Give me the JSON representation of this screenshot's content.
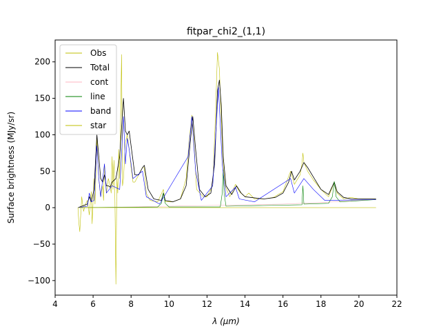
{
  "chart_data": {
    "type": "line",
    "title": "fitpar_chi2_(1,1)",
    "xlabel": "λ (μm)",
    "ylabel": "Surface brightness (MJy/sr)",
    "xlim": [
      4,
      22
    ],
    "ylim": [
      -120,
      230
    ],
    "xticks": [
      4,
      6,
      8,
      10,
      12,
      14,
      16,
      18,
      20,
      22
    ],
    "xtick_labels": [
      "4",
      "6",
      "8",
      "10",
      "12",
      "14",
      "16",
      "18",
      "20",
      "22"
    ],
    "yticks": [
      -100,
      -50,
      0,
      50,
      100,
      150,
      200
    ],
    "ytick_labels": [
      "−100",
      "−50",
      "0",
      "50",
      "100",
      "150",
      "200"
    ],
    "grid": false,
    "legend_position": "top-left",
    "series": [
      {
        "name": "Obs",
        "color": "#bfbf00",
        "points": [
          [
            5.2,
            0
          ],
          [
            5.25,
            -20
          ],
          [
            5.3,
            -33
          ],
          [
            5.4,
            15
          ],
          [
            5.5,
            -5
          ],
          [
            5.6,
            5
          ],
          [
            5.7,
            10
          ],
          [
            5.8,
            -10
          ],
          [
            5.9,
            22
          ],
          [
            5.95,
            -22
          ],
          [
            6.05,
            40
          ],
          [
            6.1,
            5
          ],
          [
            6.2,
            95
          ],
          [
            6.3,
            40
          ],
          [
            6.4,
            15
          ],
          [
            6.5,
            30
          ],
          [
            6.55,
            10
          ],
          [
            6.6,
            60
          ],
          [
            6.7,
            20
          ],
          [
            6.8,
            40
          ],
          [
            6.9,
            30
          ],
          [
            6.95,
            20
          ],
          [
            7.0,
            70
          ],
          [
            7.05,
            25
          ],
          [
            7.1,
            65
          ],
          [
            7.15,
            10
          ],
          [
            7.2,
            -105
          ],
          [
            7.25,
            40
          ],
          [
            7.3,
            20
          ],
          [
            7.35,
            80
          ],
          [
            7.4,
            40
          ],
          [
            7.5,
            210
          ],
          [
            7.55,
            30
          ],
          [
            7.6,
            40
          ],
          [
            7.7,
            90
          ],
          [
            7.8,
            100
          ],
          [
            7.9,
            80
          ],
          [
            8.0,
            55
          ],
          [
            8.1,
            35
          ],
          [
            8.2,
            35
          ],
          [
            8.4,
            45
          ],
          [
            8.6,
            55
          ],
          [
            8.7,
            55
          ],
          [
            8.8,
            20
          ],
          [
            9.0,
            10
          ],
          [
            9.4,
            8
          ],
          [
            9.7,
            25
          ],
          [
            9.8,
            8
          ],
          [
            10.2,
            8
          ],
          [
            10.6,
            12
          ],
          [
            10.9,
            40
          ],
          [
            11.05,
            90
          ],
          [
            11.2,
            127
          ],
          [
            11.3,
            95
          ],
          [
            11.45,
            25
          ],
          [
            11.8,
            15
          ],
          [
            12.0,
            15
          ],
          [
            12.3,
            30
          ],
          [
            12.45,
            130
          ],
          [
            12.55,
            213
          ],
          [
            12.65,
            190
          ],
          [
            12.75,
            120
          ],
          [
            12.85,
            60
          ],
          [
            12.95,
            30
          ],
          [
            13.2,
            15
          ],
          [
            13.5,
            32
          ],
          [
            13.7,
            22
          ],
          [
            14.0,
            15
          ],
          [
            14.2,
            20
          ],
          [
            14.5,
            12
          ],
          [
            15.0,
            12
          ],
          [
            15.5,
            14
          ],
          [
            16.0,
            22
          ],
          [
            16.4,
            50
          ],
          [
            16.6,
            32
          ],
          [
            16.9,
            45
          ],
          [
            17.0,
            60
          ],
          [
            17.05,
            75
          ],
          [
            17.1,
            62
          ],
          [
            17.3,
            50
          ],
          [
            17.6,
            38
          ],
          [
            18.0,
            25
          ],
          [
            18.4,
            15
          ],
          [
            18.7,
            35
          ],
          [
            18.85,
            20
          ],
          [
            19.2,
            12
          ],
          [
            19.6,
            14
          ],
          [
            20.0,
            12
          ],
          [
            20.4,
            12
          ],
          [
            20.9,
            12
          ]
        ]
      },
      {
        "name": "Total",
        "color": "#000000",
        "points": [
          [
            5.2,
            0
          ],
          [
            5.5,
            3
          ],
          [
            5.7,
            5
          ],
          [
            5.8,
            15
          ],
          [
            5.9,
            8
          ],
          [
            6.05,
            25
          ],
          [
            6.2,
            100
          ],
          [
            6.3,
            70
          ],
          [
            6.4,
            40
          ],
          [
            6.5,
            35
          ],
          [
            6.6,
            45
          ],
          [
            6.7,
            30
          ],
          [
            6.8,
            30
          ],
          [
            6.9,
            28
          ],
          [
            7.0,
            35
          ],
          [
            7.2,
            40
          ],
          [
            7.4,
            70
          ],
          [
            7.6,
            150
          ],
          [
            7.7,
            105
          ],
          [
            7.8,
            100
          ],
          [
            7.9,
            105
          ],
          [
            8.0,
            85
          ],
          [
            8.2,
            45
          ],
          [
            8.4,
            45
          ],
          [
            8.6,
            55
          ],
          [
            8.7,
            58
          ],
          [
            8.9,
            25
          ],
          [
            9.2,
            12
          ],
          [
            9.6,
            10
          ],
          [
            9.7,
            20
          ],
          [
            9.8,
            10
          ],
          [
            10.2,
            8
          ],
          [
            10.6,
            12
          ],
          [
            10.9,
            30
          ],
          [
            11.1,
            85
          ],
          [
            11.25,
            125
          ],
          [
            11.4,
            80
          ],
          [
            11.6,
            25
          ],
          [
            11.9,
            15
          ],
          [
            12.2,
            20
          ],
          [
            12.4,
            60
          ],
          [
            12.55,
            160
          ],
          [
            12.65,
            175
          ],
          [
            12.75,
            140
          ],
          [
            12.85,
            70
          ],
          [
            13.0,
            30
          ],
          [
            13.3,
            18
          ],
          [
            13.55,
            30
          ],
          [
            13.8,
            20
          ],
          [
            14.0,
            15
          ],
          [
            14.3,
            14
          ],
          [
            15.0,
            12
          ],
          [
            15.6,
            14
          ],
          [
            16.0,
            20
          ],
          [
            16.3,
            35
          ],
          [
            16.45,
            50
          ],
          [
            16.6,
            38
          ],
          [
            16.9,
            50
          ],
          [
            17.1,
            62
          ],
          [
            17.3,
            55
          ],
          [
            17.6,
            42
          ],
          [
            18.0,
            25
          ],
          [
            18.4,
            18
          ],
          [
            18.7,
            35
          ],
          [
            18.85,
            22
          ],
          [
            19.2,
            14
          ],
          [
            19.6,
            12
          ],
          [
            20.0,
            12
          ],
          [
            20.4,
            12
          ],
          [
            20.9,
            12
          ]
        ]
      },
      {
        "name": "cont",
        "color": "#ffb6c1",
        "points": [
          [
            5.2,
            0
          ],
          [
            6,
            0
          ],
          [
            8,
            1
          ],
          [
            10,
            2
          ],
          [
            12,
            3
          ],
          [
            14,
            4
          ],
          [
            16,
            5
          ],
          [
            18,
            7
          ],
          [
            20,
            10
          ],
          [
            20.9,
            11
          ]
        ]
      },
      {
        "name": "line",
        "color": "#008000",
        "points": [
          [
            5.2,
            0
          ],
          [
            9.4,
            1
          ],
          [
            9.6,
            6
          ],
          [
            9.7,
            20
          ],
          [
            9.8,
            6
          ],
          [
            10.0,
            1
          ],
          [
            12.7,
            1
          ],
          [
            12.8,
            20
          ],
          [
            12.85,
            52
          ],
          [
            12.9,
            20
          ],
          [
            13.0,
            2
          ],
          [
            17.0,
            4
          ],
          [
            17.05,
            30
          ],
          [
            17.1,
            5
          ],
          [
            18.4,
            6
          ],
          [
            18.6,
            15
          ],
          [
            18.7,
            36
          ],
          [
            18.8,
            15
          ],
          [
            19.0,
            8
          ],
          [
            20.9,
            11
          ]
        ]
      },
      {
        "name": "band",
        "color": "#0000ff",
        "points": [
          [
            5.2,
            0
          ],
          [
            5.7,
            2
          ],
          [
            5.8,
            20
          ],
          [
            5.9,
            8
          ],
          [
            6.05,
            10
          ],
          [
            6.2,
            85
          ],
          [
            6.3,
            40
          ],
          [
            6.4,
            15
          ],
          [
            6.6,
            60
          ],
          [
            6.7,
            20
          ],
          [
            7.0,
            30
          ],
          [
            7.4,
            25
          ],
          [
            7.6,
            125
          ],
          [
            7.7,
            60
          ],
          [
            7.8,
            95
          ],
          [
            7.9,
            80
          ],
          [
            8.1,
            40
          ],
          [
            8.6,
            50
          ],
          [
            8.8,
            15
          ],
          [
            9.5,
            5
          ],
          [
            11.0,
            70
          ],
          [
            11.2,
            125
          ],
          [
            11.4,
            50
          ],
          [
            11.7,
            10
          ],
          [
            12.3,
            30
          ],
          [
            12.6,
            165
          ],
          [
            12.8,
            60
          ],
          [
            13.0,
            15
          ],
          [
            13.5,
            28
          ],
          [
            13.7,
            12
          ],
          [
            14.5,
            8
          ],
          [
            16.4,
            40
          ],
          [
            16.6,
            20
          ],
          [
            17.1,
            40
          ],
          [
            17.6,
            25
          ],
          [
            18.2,
            10
          ],
          [
            20.9,
            11
          ]
        ]
      },
      {
        "name": "star",
        "color": "#bfbf00",
        "points": [
          [
            5.2,
            0
          ],
          [
            20.9,
            0
          ]
        ]
      }
    ]
  }
}
